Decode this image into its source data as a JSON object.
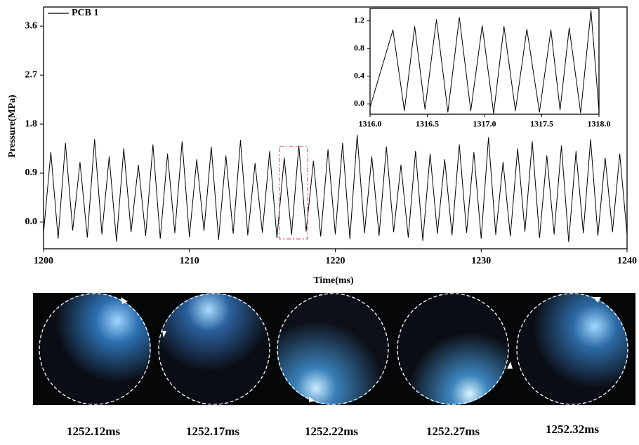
{
  "chart_data": [
    {
      "type": "line",
      "xlabel": "Time(ms)",
      "ylabel": "Pressure(MPa)",
      "legend": "upper left",
      "xlim": [
        1200,
        1240
      ],
      "ylim": [
        -0.49,
        3.95
      ],
      "xticks": [
        1200,
        1210,
        1220,
        1230,
        1240
      ],
      "yticks": [
        {
          "value": 0,
          "label": "0.0"
        },
        0.9,
        1.8,
        2.7,
        3.6
      ],
      "x": [
        1200,
        1200.5,
        1201,
        1201.5,
        1202,
        1202.5,
        1203,
        1203.5,
        1204,
        1204.5,
        1205,
        1205.5,
        1206,
        1206.5,
        1207,
        1207.5,
        1208,
        1208.5,
        1209,
        1209.5,
        1210,
        1210.5,
        1211,
        1211.5,
        1212,
        1212.5,
        1213,
        1213.5,
        1214,
        1214.5,
        1215,
        1215.5,
        1216,
        1216.5,
        1217,
        1217.5,
        1218,
        1218.5,
        1219,
        1219.5,
        1220,
        1220.5,
        1221,
        1221.5,
        1222,
        1222.5,
        1223,
        1223.5,
        1224,
        1224.5,
        1225,
        1225.5,
        1226,
        1226.5,
        1227,
        1227.5,
        1228,
        1228.5,
        1229,
        1229.5,
        1230,
        1230.5,
        1231,
        1231.5,
        1232,
        1232.5,
        1233,
        1233.5,
        1234,
        1234.5,
        1235,
        1235.5,
        1236,
        1236.5,
        1237,
        1237.5,
        1238,
        1238.5,
        1239,
        1239.5,
        1240
      ],
      "series": [
        {
          "name": "PCB 1",
          "color": "#000000",
          "values": [
            -0.2,
            1.28,
            -0.3,
            1.45,
            -0.15,
            1.1,
            -0.28,
            1.52,
            -0.22,
            1.2,
            -0.35,
            1.35,
            -0.18,
            1.05,
            -0.25,
            1.42,
            -0.3,
            1.25,
            -0.2,
            1.48,
            -0.27,
            1.15,
            -0.16,
            1.38,
            -0.32,
            1.22,
            -0.21,
            1.5,
            -0.24,
            1.08,
            -0.19,
            1.3,
            -0.29,
            1.18,
            -0.23,
            1.4,
            -0.17,
            1.12,
            -0.26,
            1.33,
            -0.22,
            1.45,
            -0.31,
            1.6,
            -0.2,
            1.2,
            -0.25,
            1.38,
            -0.18,
            1.05,
            -0.28,
            1.3,
            -0.34,
            1.25,
            -0.21,
            1.15,
            -0.24,
            1.42,
            -0.19,
            1.28,
            -0.3,
            1.55,
            -0.23,
            1.1,
            -0.26,
            1.35,
            -0.17,
            1.48,
            -0.29,
            1.22,
            -0.22,
            1.4,
            -0.36,
            1.3,
            -0.2,
            1.52,
            -0.25,
            1.18,
            -0.18,
            1.25,
            -0.23
          ]
        }
      ]
    },
    {
      "type": "line",
      "xlim": [
        1316,
        1318
      ],
      "ylim": [
        -0.15,
        1.38
      ],
      "xticks": [
        {
          "value": 1316,
          "label": "1316.0"
        },
        1316.5,
        {
          "value": 1317,
          "label": "1317.0"
        },
        1317.5,
        {
          "value": 1318,
          "label": "1318.0"
        }
      ],
      "yticks": [
        {
          "value": 0,
          "label": "0.0"
        },
        0.4,
        0.8,
        1.2
      ],
      "x": [
        1316,
        1316.2,
        1316.3,
        1316.39,
        1316.48,
        1316.58,
        1316.68,
        1316.78,
        1316.88,
        1316.98,
        1317.08,
        1317.17,
        1317.27,
        1317.37,
        1317.48,
        1317.58,
        1317.66,
        1317.74,
        1317.84,
        1317.93,
        1318
      ],
      "series": [
        {
          "color": "#000000",
          "values": [
            -0.05,
            1.07,
            -0.1,
            1.12,
            -0.08,
            1.22,
            -0.12,
            1.25,
            -0.1,
            1.13,
            -0.14,
            1.12,
            -0.1,
            1.08,
            -0.12,
            1.07,
            -0.09,
            1.1,
            -0.13,
            1.35,
            -0.1
          ]
        }
      ]
    }
  ],
  "image_strip": {
    "captions": [
      "1252.12ms",
      "1252.17ms",
      "1252.22ms",
      "1252.27ms",
      "1252.32ms"
    ]
  }
}
